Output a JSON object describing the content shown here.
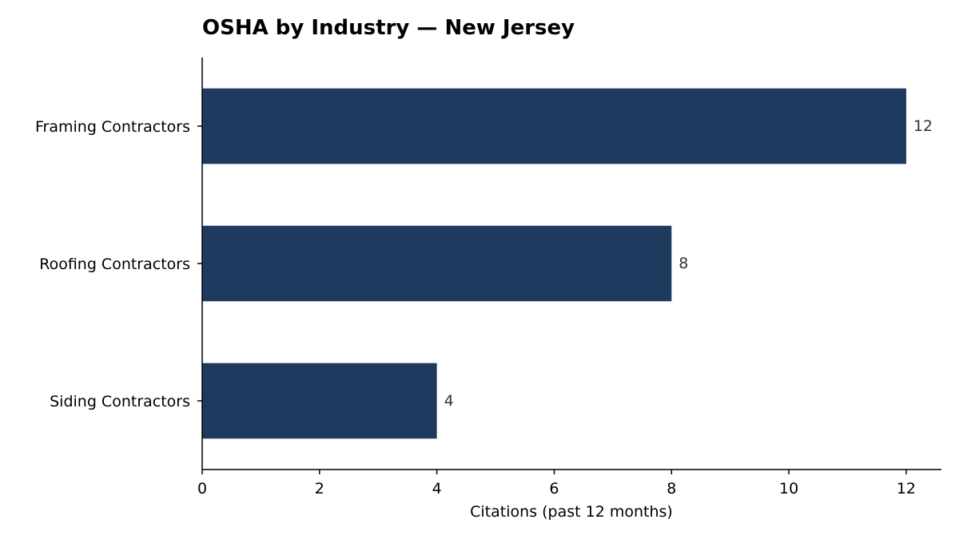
{
  "chart_data": {
    "type": "bar",
    "orientation": "horizontal",
    "title": "OSHA by Industry — New Jersey",
    "xlabel": "Citations (past 12 months)",
    "ylabel": "",
    "categories": [
      "Framing Contractors",
      "Roofing Contractors",
      "Siding Contractors"
    ],
    "values": [
      12,
      8,
      4
    ],
    "value_labels": [
      "12",
      "8",
      "4"
    ],
    "xlim": [
      0,
      12.6
    ],
    "xticks": [
      0,
      2,
      4,
      6,
      8,
      10,
      12
    ],
    "xtick_labels": [
      "0",
      "2",
      "4",
      "6",
      "8",
      "10",
      "12"
    ],
    "grid": false,
    "bar_color": "#1f3a5f"
  }
}
